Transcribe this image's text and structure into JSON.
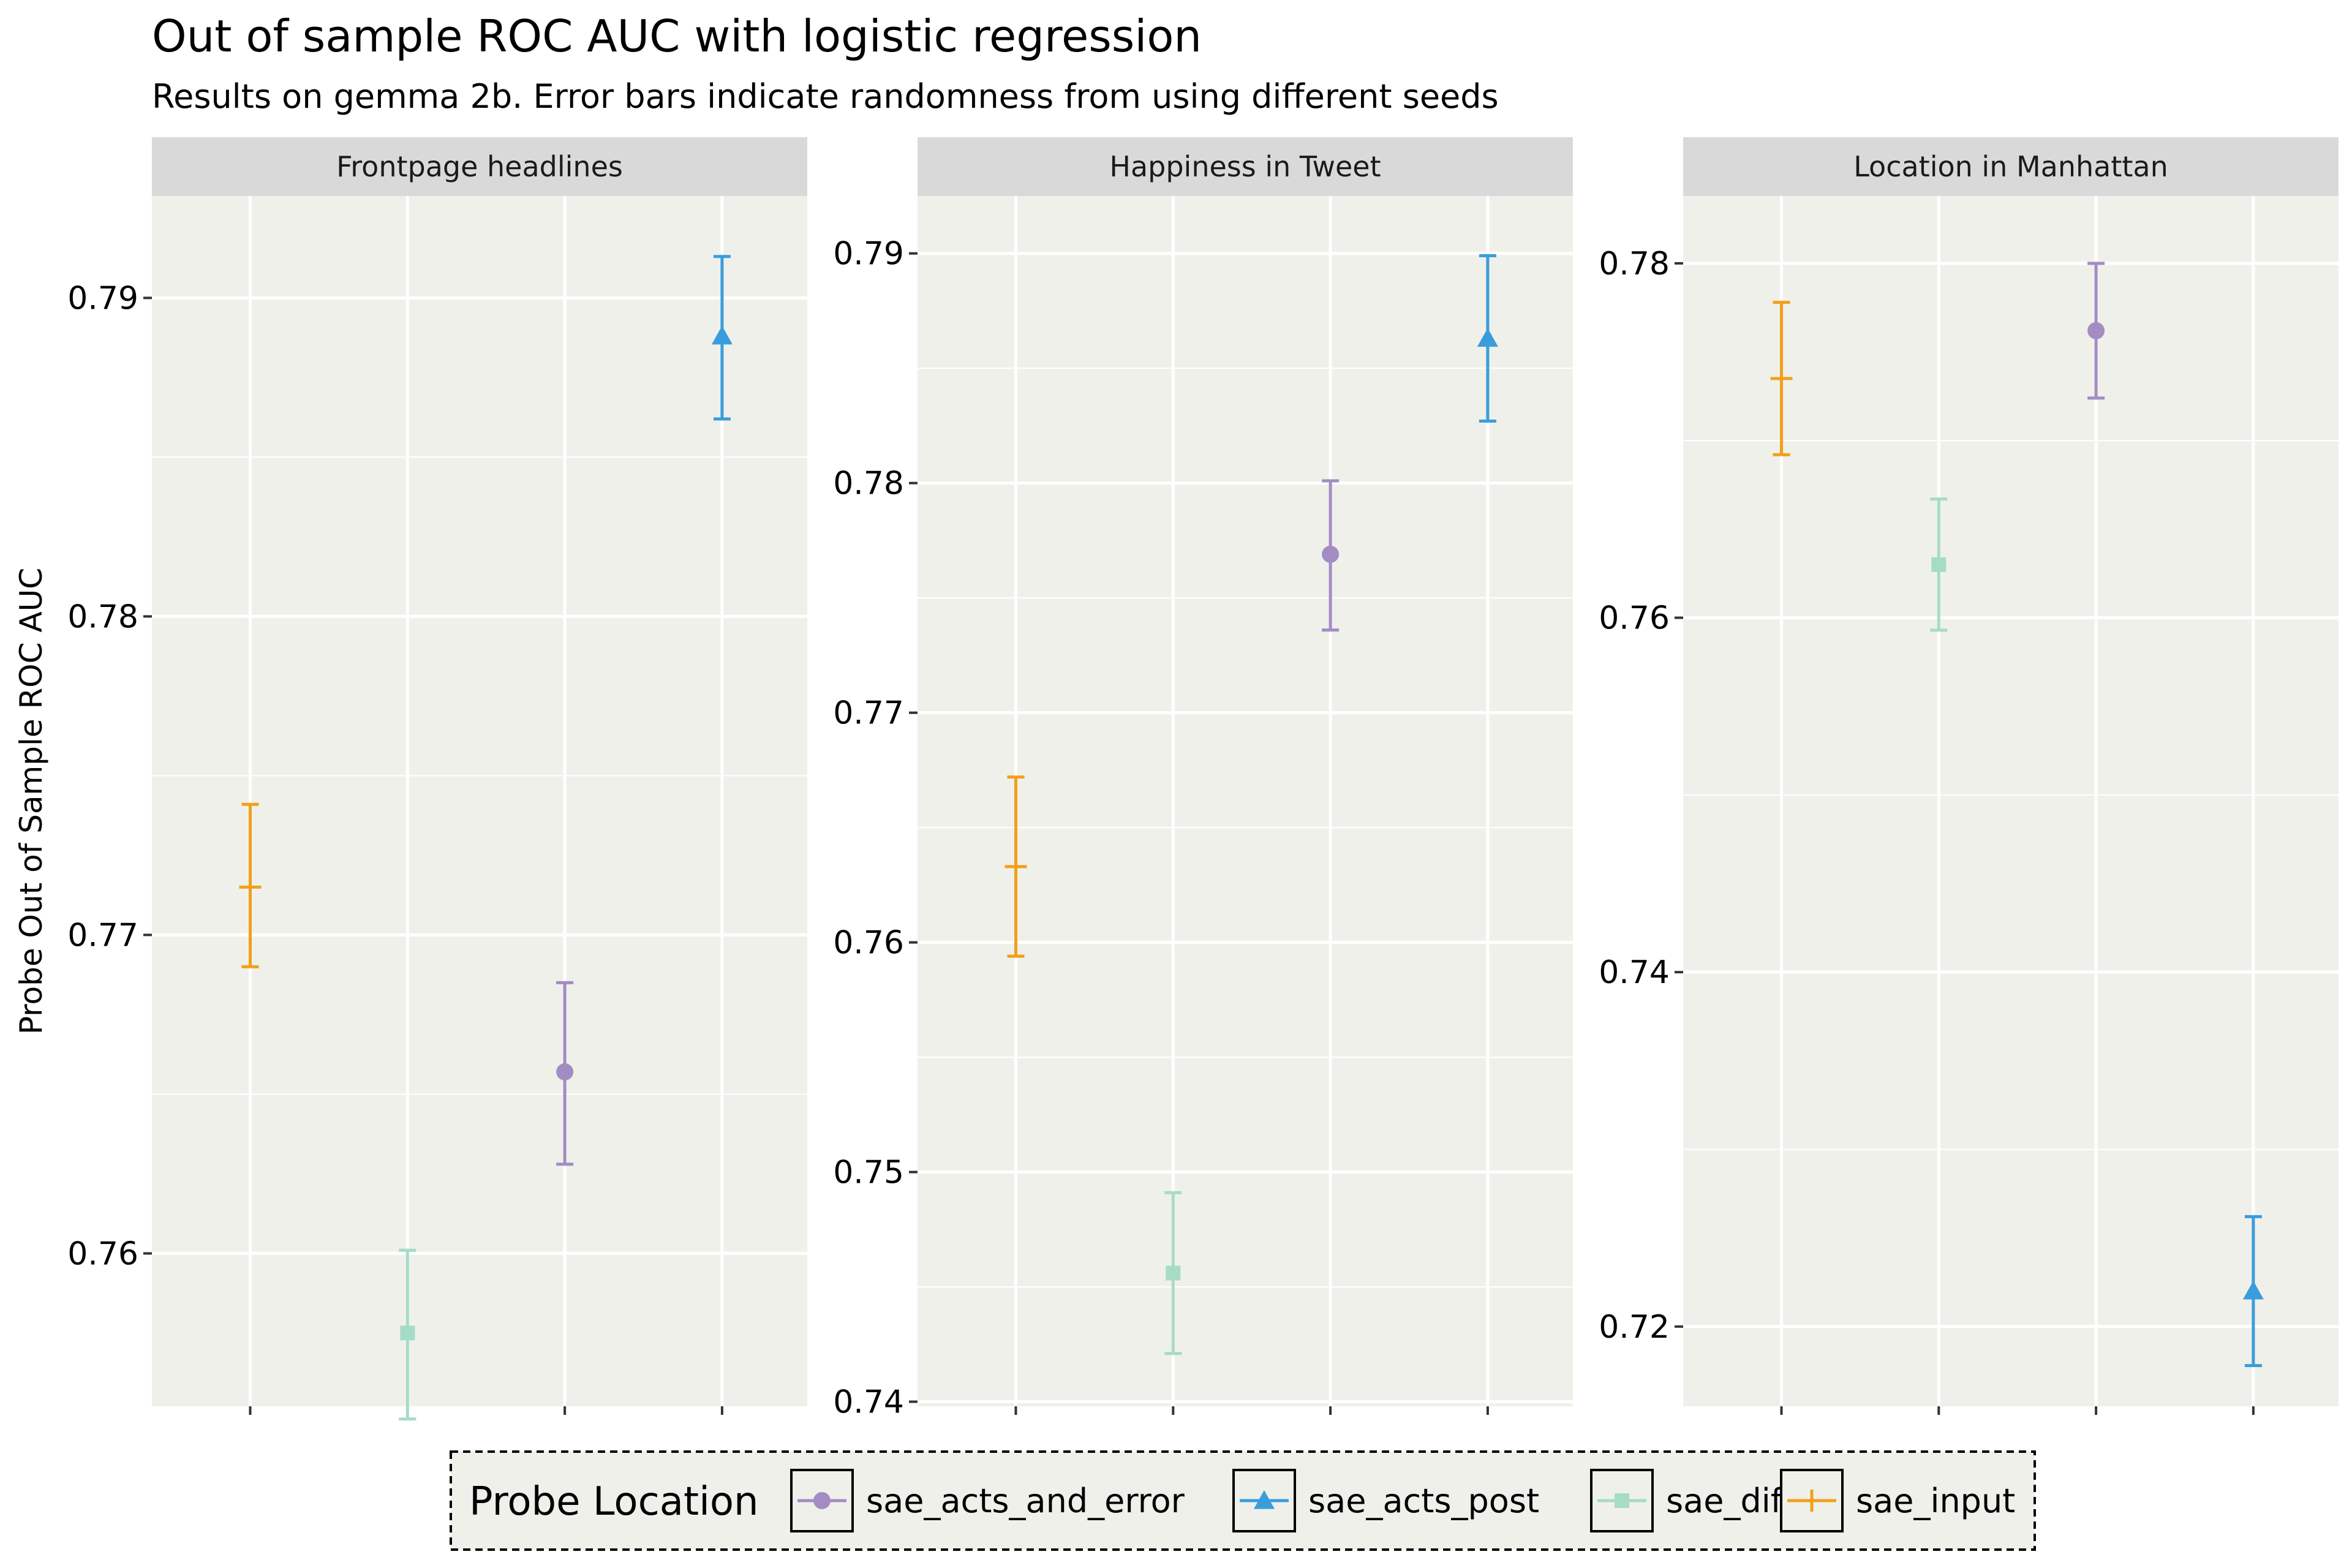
{
  "chart_data": {
    "type": "scatter",
    "title": "Out of sample ROC AUC with logistic regression",
    "subtitle": "Results on gemma 2b. Error bars indicate randomness from using different seeds",
    "ylabel": "Probe Out of Sample ROC AUC",
    "xlabel": "",
    "legend": {
      "title": "Probe Location",
      "position": "bottom",
      "entries": [
        "sae_acts_and_error",
        "sae_acts_post",
        "sae_diff",
        "sae_input"
      ]
    },
    "x_order": [
      "sae_input",
      "sae_diff",
      "sae_acts_and_error",
      "sae_acts_post"
    ],
    "series_style": {
      "sae_acts_and_error": {
        "color": "#a38cc4",
        "shape": "circle"
      },
      "sae_acts_post": {
        "color": "#3a9ddb",
        "shape": "triangle"
      },
      "sae_diff": {
        "color": "#a6dcc6",
        "shape": "square"
      },
      "sae_input": {
        "color": "#f2a01a",
        "shape": "plus"
      }
    },
    "panels": [
      {
        "name": "Frontpage headlines",
        "ylim": [
          0.7552,
          0.7932
        ],
        "ticks": [
          0.76,
          0.77,
          0.78,
          0.79
        ],
        "tick_labels": [
          "0.76",
          "0.77",
          "0.78",
          "0.79"
        ],
        "points": [
          {
            "series": "sae_input",
            "y": 0.7715,
            "ymin": 0.769,
            "ymax": 0.7741
          },
          {
            "series": "sae_diff",
            "y": 0.7575,
            "ymin": 0.7548,
            "ymax": 0.7601
          },
          {
            "series": "sae_acts_and_error",
            "y": 0.7657,
            "ymin": 0.7628,
            "ymax": 0.7685
          },
          {
            "series": "sae_acts_post",
            "y": 0.7888,
            "ymin": 0.7862,
            "ymax": 0.7913
          }
        ]
      },
      {
        "name": "Happiness in Tweet",
        "ylim": [
          0.7398,
          0.7925
        ],
        "ticks": [
          0.74,
          0.75,
          0.76,
          0.77,
          0.78,
          0.79
        ],
        "tick_labels": [
          "0.74",
          "0.75",
          "0.76",
          "0.77",
          "0.78",
          "0.79"
        ],
        "points": [
          {
            "series": "sae_input",
            "y": 0.7633,
            "ymin": 0.7594,
            "ymax": 0.7672
          },
          {
            "series": "sae_diff",
            "y": 0.7456,
            "ymin": 0.7421,
            "ymax": 0.7491
          },
          {
            "series": "sae_acts_and_error",
            "y": 0.7769,
            "ymin": 0.7736,
            "ymax": 0.7801
          },
          {
            "series": "sae_acts_post",
            "y": 0.7863,
            "ymin": 0.7827,
            "ymax": 0.7899
          }
        ]
      },
      {
        "name": "Location in Manhattan",
        "ylim": [
          0.7155,
          0.7838
        ],
        "ticks": [
          0.72,
          0.74,
          0.76,
          0.78
        ],
        "tick_labels": [
          "0.72",
          "0.74",
          "0.76",
          "0.78"
        ],
        "points": [
          {
            "series": "sae_input",
            "y": 0.7735,
            "ymin": 0.7692,
            "ymax": 0.7778
          },
          {
            "series": "sae_diff",
            "y": 0.763,
            "ymin": 0.7593,
            "ymax": 0.7667
          },
          {
            "series": "sae_acts_and_error",
            "y": 0.7762,
            "ymin": 0.7724,
            "ymax": 0.78
          },
          {
            "series": "sae_acts_post",
            "y": 0.722,
            "ymin": 0.7178,
            "ymax": 0.7262
          }
        ]
      }
    ]
  }
}
